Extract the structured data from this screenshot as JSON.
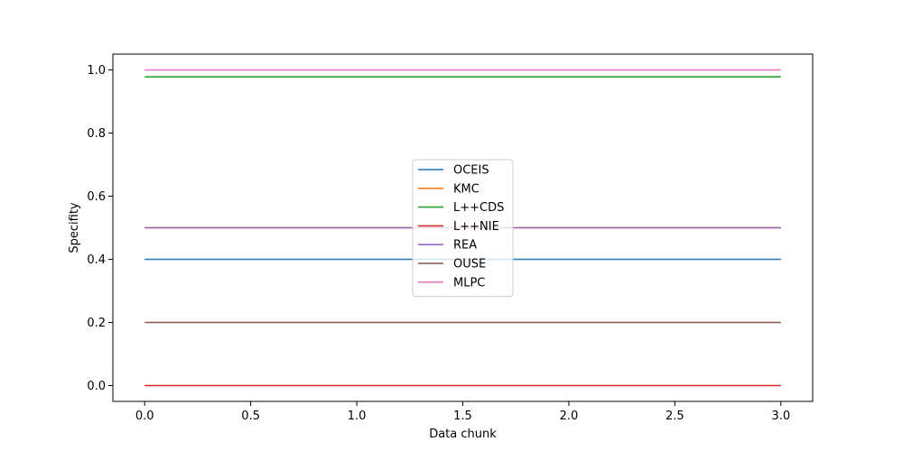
{
  "chart_data": {
    "type": "line",
    "x": [
      0,
      1,
      2,
      3
    ],
    "xlabel": "Data chunk",
    "ylabel": "Specifity",
    "xlim": [
      -0.15,
      3.15
    ],
    "ylim": [
      -0.05,
      1.05
    ],
    "xticks": [
      0.0,
      0.5,
      1.0,
      1.5,
      2.0,
      2.5,
      3.0
    ],
    "xtick_labels": [
      "0.0",
      "0.5",
      "1.0",
      "1.5",
      "2.0",
      "2.5",
      "3.0"
    ],
    "yticks": [
      0.0,
      0.2,
      0.4,
      0.6,
      0.8,
      1.0
    ],
    "ytick_labels": [
      "0.0",
      "0.2",
      "0.4",
      "0.6",
      "0.8",
      "1.0"
    ],
    "grid": false,
    "legend_position": "center",
    "series": [
      {
        "name": "OCEIS",
        "color": "#1f77b4",
        "values": [
          0.4,
          0.4,
          0.4,
          0.4
        ]
      },
      {
        "name": "KMC",
        "color": "#ff7f0e",
        "values": [
          0.5,
          0.5,
          0.5,
          0.5
        ]
      },
      {
        "name": "L++CDS",
        "color": "#2ca02c",
        "values": [
          0.978,
          0.978,
          0.978,
          0.978
        ]
      },
      {
        "name": "L++NIE",
        "color": "#d62728",
        "values": [
          0.0,
          0.0,
          0.0,
          0.0
        ]
      },
      {
        "name": "REA",
        "color": "#9467bd",
        "values": [
          0.5,
          0.5,
          0.5,
          0.5
        ]
      },
      {
        "name": "OUSE",
        "color": "#8c564b",
        "values": [
          0.2,
          0.2,
          0.2,
          0.2
        ]
      },
      {
        "name": "MLPC",
        "color": "#e377c2",
        "values": [
          1.0,
          1.0,
          1.0,
          1.0
        ]
      }
    ]
  }
}
